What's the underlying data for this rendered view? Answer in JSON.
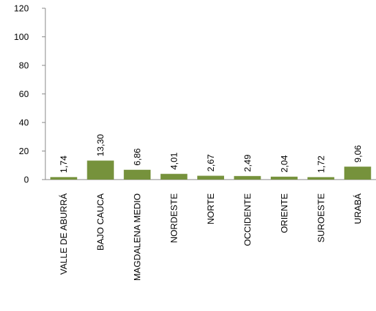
{
  "chart_data": {
    "type": "bar",
    "categories": [
      "VALLE DE ABURRÁ",
      "BAJO CAUCA",
      "MAGDALENA MEDIO",
      "NORDESTE",
      "NORTE",
      "OCCIDENTE",
      "ORIENTE",
      "SUROESTE",
      "URABÁ"
    ],
    "values": [
      1.74,
      13.3,
      6.86,
      4.01,
      2.67,
      2.49,
      2.04,
      1.72,
      9.06
    ],
    "data_labels": [
      "1,74",
      "13,30",
      "6,86",
      "4,01",
      "2,67",
      "2,49",
      "2,04",
      "1,72",
      "9,06"
    ],
    "title": "",
    "xlabel": "",
    "ylabel": "",
    "ylim": [
      0,
      120
    ],
    "yticks": [
      0,
      20,
      40,
      60,
      80,
      100,
      120
    ],
    "grid": false,
    "bar_color": "#76923c"
  }
}
